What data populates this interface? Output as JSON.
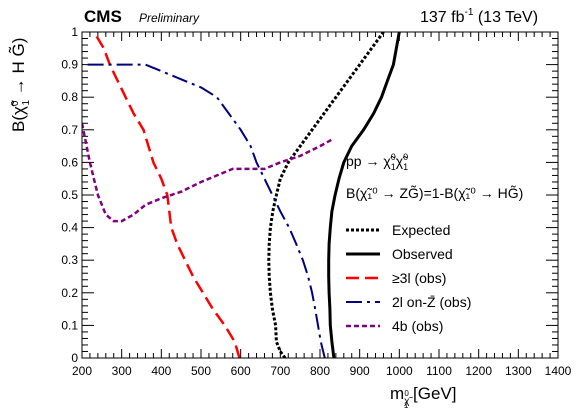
{
  "header": {
    "experiment": "CMS",
    "status": "Preliminary",
    "lumi": "137 fb",
    "lumi_sup": "-1",
    "energy": " (13 TeV)"
  },
  "axes": {
    "x_title": "m",
    "x_sub": "χ̃",
    "x_sub_sup": "0",
    "x_sub_sub": "1",
    "x_unit": " [GeV]",
    "y_title": "B(χ̃",
    "y_sup": "0",
    "y_sub": "1",
    "y_after": " → H G̃)"
  },
  "process": {
    "text": "pp → χ̃",
    "sup1": "0",
    "sub1": "1",
    "mid": "χ̃",
    "sup2": "0",
    "sub2": "1"
  },
  "branching": "B(χ̃₁⁰ → ZG̃)=1-B(χ̃₁⁰ → HG̃)",
  "chart_data": {
    "type": "line",
    "xlabel": "m_χ̃₁⁰ [GeV]",
    "ylabel": "B(χ̃₁⁰ → HG̃)",
    "xlim": [
      200,
      1400
    ],
    "ylim": [
      0,
      1
    ],
    "x_ticks": [
      200,
      300,
      400,
      500,
      600,
      700,
      800,
      900,
      1000,
      1100,
      1200,
      1300,
      1400
    ],
    "y_ticks": [
      0,
      0.1,
      0.2,
      0.3,
      0.4,
      0.5,
      0.6,
      0.7,
      0.8,
      0.9,
      1
    ],
    "x_tick_labels": [
      "200",
      "300",
      "400",
      "500",
      "600",
      "700",
      "800",
      "900",
      "1000",
      "1100",
      "1200",
      "1300",
      "1400"
    ],
    "y_tick_labels": [
      "0",
      "0.1",
      "0.2",
      "0.3",
      "0.4",
      "0.5",
      "0.6",
      "0.7",
      "0.8",
      "0.9",
      "1"
    ],
    "legend_position": "right",
    "series": [
      {
        "name": "Expected",
        "color": "#000000",
        "style": "dotted",
        "x": [
          712,
          700,
          690,
          688,
          680,
          675,
          672,
          671,
          672,
          675,
          681,
          690,
          700,
          720,
          750,
          780,
          810,
          840,
          870,
          900,
          930,
          960
        ],
        "y": [
          0,
          0.02,
          0.05,
          0.1,
          0.15,
          0.2,
          0.25,
          0.3,
          0.35,
          0.4,
          0.45,
          0.5,
          0.55,
          0.6,
          0.65,
          0.7,
          0.75,
          0.8,
          0.85,
          0.9,
          0.95,
          1.0
        ]
      },
      {
        "name": "Observed",
        "color": "#000000",
        "style": "solid",
        "x": [
          835,
          830,
          826,
          825,
          823,
          822,
          822,
          823,
          826,
          830,
          838,
          848,
          860,
          880,
          910,
          935,
          955,
          970,
          985,
          1000
        ],
        "y": [
          0,
          0.05,
          0.1,
          0.15,
          0.2,
          0.25,
          0.3,
          0.35,
          0.4,
          0.45,
          0.5,
          0.55,
          0.6,
          0.65,
          0.7,
          0.75,
          0.8,
          0.85,
          0.9,
          1.0
        ]
      },
      {
        "name": "≥3l (obs)",
        "color": "#ff0000",
        "style": "dashed",
        "x": [
          597,
          585,
          560,
          530,
          505,
          480,
          460,
          440,
          425,
          415,
          400,
          380,
          355,
          330,
          310,
          290,
          270,
          255,
          240,
          230
        ],
        "y": [
          0,
          0.05,
          0.1,
          0.15,
          0.2,
          0.25,
          0.3,
          0.35,
          0.4,
          0.5,
          0.55,
          0.6,
          0.7,
          0.75,
          0.8,
          0.85,
          0.9,
          0.95,
          0.98,
          1.0
        ]
      },
      {
        "name": "2l on-Z̄ (obs)",
        "color": "#00007f",
        "style": "dashdot",
        "x": [
          812,
          802,
          795,
          788,
          780,
          770,
          757,
          740,
          722,
          700,
          680,
          660,
          640,
          625,
          600,
          570,
          540,
          500,
          460,
          420,
          360,
          320,
          260,
          200
        ],
        "y": [
          0,
          0.05,
          0.1,
          0.15,
          0.2,
          0.25,
          0.3,
          0.35,
          0.4,
          0.45,
          0.5,
          0.55,
          0.6,
          0.65,
          0.7,
          0.75,
          0.8,
          0.83,
          0.85,
          0.87,
          0.9,
          0.9,
          0.9,
          0.9
        ]
      },
      {
        "name": "4b (obs)",
        "color": "#800080",
        "style": "short-dashed",
        "x": [
          200,
          220,
          240,
          260,
          280,
          300,
          330,
          360,
          400,
          450,
          500,
          540,
          580,
          620,
          660,
          700,
          750,
          800,
          830
        ],
        "y": [
          0.72,
          0.6,
          0.5,
          0.44,
          0.42,
          0.42,
          0.44,
          0.47,
          0.49,
          0.51,
          0.54,
          0.56,
          0.58,
          0.58,
          0.58,
          0.6,
          0.62,
          0.65,
          0.67
        ]
      }
    ]
  }
}
